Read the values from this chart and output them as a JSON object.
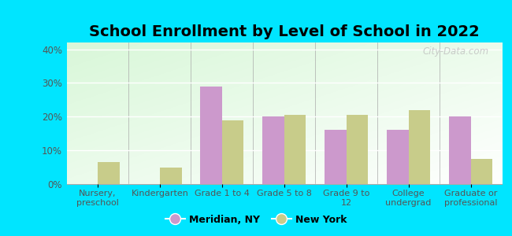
{
  "title": "School Enrollment by Level of School in 2022",
  "categories": [
    "Nursery,\npreschool",
    "Kindergarten",
    "Grade 1 to 4",
    "Grade 5 to 8",
    "Grade 9 to\n12",
    "College\nundergrad",
    "Graduate or\nprofessional"
  ],
  "meridian_values": [
    0,
    0,
    29,
    20,
    16,
    16,
    20
  ],
  "newyork_values": [
    6.5,
    5,
    19,
    20.5,
    20.5,
    22,
    7.5
  ],
  "meridian_color": "#cc99cc",
  "newyork_color": "#c8cc8a",
  "ylim": [
    0,
    42
  ],
  "yticks": [
    0,
    10,
    20,
    30,
    40
  ],
  "ytick_labels": [
    "0%",
    "10%",
    "20%",
    "30%",
    "40%"
  ],
  "bar_width": 0.35,
  "outer_background": "#00e5ff",
  "title_fontsize": 14,
  "legend_labels": [
    "Meridian, NY",
    "New York"
  ],
  "watermark": "City-Data.com",
  "tick_label_color": "#555555",
  "axis_label_color": "#555555"
}
